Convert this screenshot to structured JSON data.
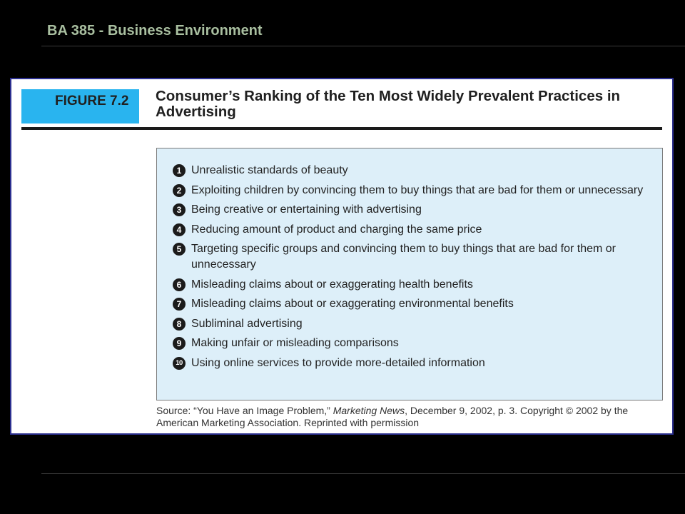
{
  "slide": {
    "header_title": "BA 385 - Business Environment"
  },
  "figure": {
    "label": "FIGURE 7.2",
    "title": "Consumer’s Ranking of the Ten Most Widely Prevalent Practices in Advertising",
    "practices": [
      {
        "rank": "1",
        "text": "Unrealistic standards of beauty"
      },
      {
        "rank": "2",
        "text": "Exploiting children by convincing them to buy things that are bad for them or unnecessary"
      },
      {
        "rank": "3",
        "text": "Being creative or entertaining with advertising"
      },
      {
        "rank": "4",
        "text": "Reducing amount of product and charging the same price"
      },
      {
        "rank": "5",
        "text": "Targeting specific groups and convincing them to buy things that are bad for them or unnecessary"
      },
      {
        "rank": "6",
        "text": "Misleading claims about or exaggerating health benefits"
      },
      {
        "rank": "7",
        "text": "Misleading claims about or exaggerating environmental benefits"
      },
      {
        "rank": "8",
        "text": "Subliminal advertising"
      },
      {
        "rank": "9",
        "text": "Making unfair or misleading comparisons"
      },
      {
        "rank": "10",
        "text": "Using online services to provide more-detailed information"
      }
    ],
    "source": {
      "prefix": "Source: “You Have an Image Problem,” ",
      "publication": "Marketing News",
      "suffix": ", December 9, 2002, p. 3. Copyright © 2002 by the American Marketing Association. Reprinted with permission"
    }
  },
  "colors": {
    "background": "#000000",
    "header_text": "#a9bfa0",
    "label_block": "#29b4ef",
    "box_fill": "#ddeff9",
    "panel_border": "#2b2f8f"
  }
}
